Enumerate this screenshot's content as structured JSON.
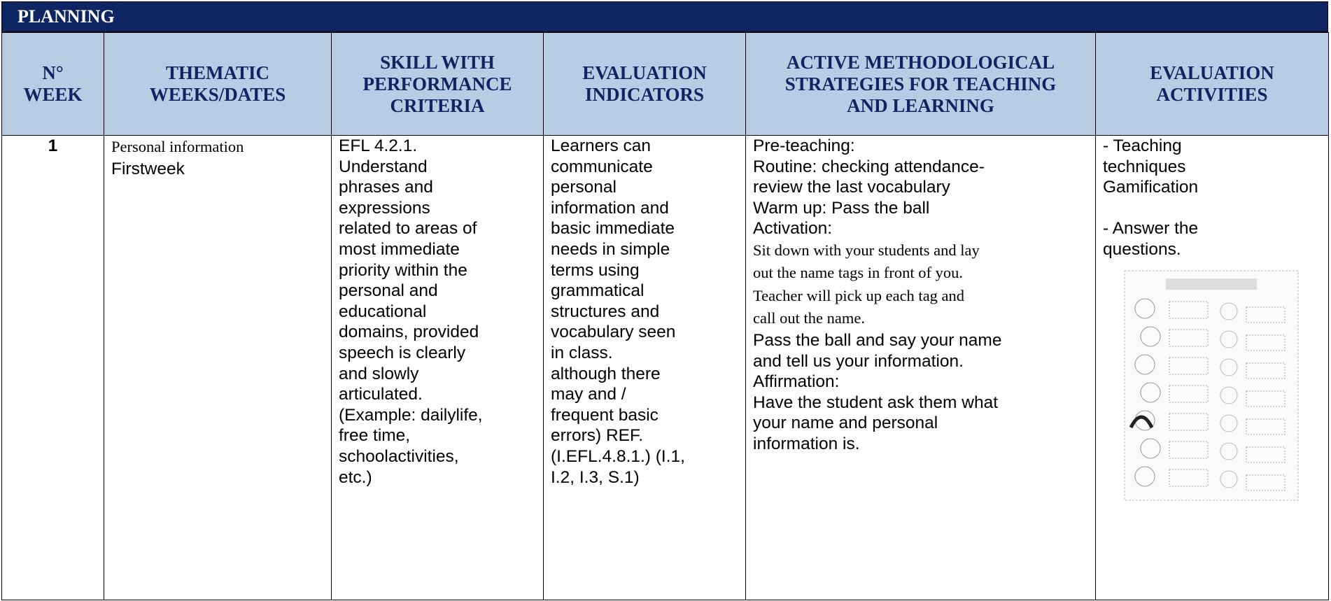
{
  "title": "PLANNING",
  "header": [
    [
      "N°",
      "WEEK"
    ],
    [
      "THEMATIC",
      "WEEKS/DATES"
    ],
    [
      "SKILL WITH",
      "PERFORMANCE",
      "CRITERIA"
    ],
    [
      "EVALUATION",
      "INDICATORS"
    ],
    [
      "ACTIVE METHODOLOGICAL",
      "STRATEGIES FOR TEACHING",
      "AND LEARNING"
    ],
    [
      "EVALUATION",
      "ACTIVITIES"
    ]
  ],
  "rows": [
    [
      [
        "1"
      ],
      [
        "Personal information",
        "Firstweek"
      ],
      [
        "EFL 4.2.1.",
        "Understand",
        "phrases and",
        "expressions",
        "related to areas of",
        "most immediate",
        "priority within the",
        "personal and",
        "educational",
        "domains, provided",
        "speech is clearly",
        "and slowly",
        "articulated.",
        "(Example: dailylife,",
        "free time,",
        "schoolactivities,",
        "etc.)"
      ],
      [
        "Learners can",
        "communicate",
        "personal",
        "information and",
        "basic immediate",
        "needs in simple",
        "terms using",
        "grammatical",
        "structures and",
        "vocabulary seen",
        "in class.",
        "although there",
        "may and /",
        "frequent basic",
        "errors) REF.",
        "(I.EFL.4.8.1.) (I.1,",
        "I.2, I.3, S.1)"
      ],
      [
        "Pre-teaching:",
        "Routine: checking attendance-",
        "review the last vocabulary",
        "Warm up: Pass the ball",
        "Activation:",
        "Sit down with your students and lay",
        "out the name tags in front of you.",
        "Teacher will pick up each tag and",
        "call out the name.",
        "Pass the ball and say your name",
        "and tell us your information.",
        "Affirmation:",
        "Have the student ask them what",
        "your name and personal",
        "information is."
      ],
      [
        "- Teaching",
        "techniques",
        "Gamification",
        "- Answer the",
        "questions."
      ]
    ]
  ]
}
